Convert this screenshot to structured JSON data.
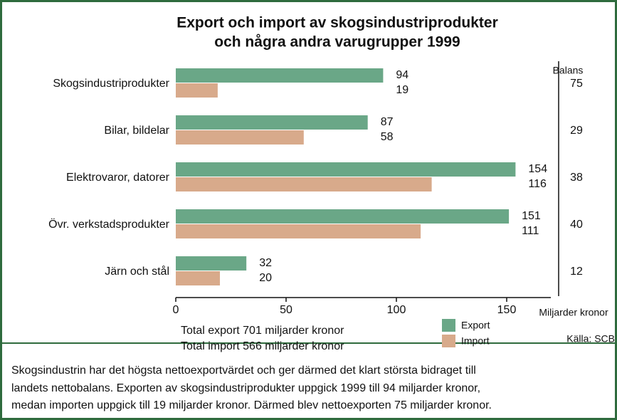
{
  "chart_data": {
    "type": "bar",
    "orientation": "horizontal",
    "title": [
      "Export och import av skogsindustriprodukter",
      "och några andra varugrupper 1999"
    ],
    "categories": [
      "Skogsindustriprodukter",
      "Bilar, bildelar",
      "Elektrovaror, datorer",
      "Övr. verkstadsprodukter",
      "Järn och stål"
    ],
    "series": [
      {
        "name": "Export",
        "color": "#6aa787",
        "values": [
          94,
          87,
          154,
          151,
          32
        ]
      },
      {
        "name": "Import",
        "color": "#d8aa8b",
        "values": [
          19,
          58,
          116,
          111,
          20
        ]
      }
    ],
    "balance_label": "Balans",
    "balance": [
      75,
      29,
      38,
      40,
      12
    ],
    "xlim": [
      0,
      170
    ],
    "xticks": [
      0,
      50,
      100,
      150
    ],
    "x_label": "Miljarder kronor",
    "totals": [
      "Total export 701 miljarder kronor",
      "Total import 566 miljarder kronor"
    ],
    "source": "Källa: SCB"
  },
  "caption": [
    "Skogsindustrin har det högsta nettoexportvärdet och ger därmed det klart största bidraget till",
    "landets nettobalans. Exporten av skogsindustriprodukter uppgick 1999 till 94 miljarder kronor,",
    "medan importen uppgick till 19 miljarder kronor. Därmed blev nettoexporten 75 miljarder kronor."
  ]
}
